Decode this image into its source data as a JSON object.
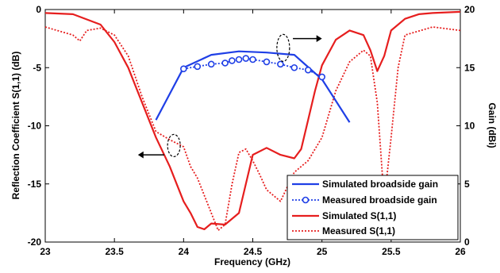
{
  "chart_data": {
    "type": "line",
    "xlabel": "Frequency (GHz)",
    "ylabel_left": "Reflection Coefficient S(1,1) (dB)",
    "ylabel_right": "Gain (dBi)",
    "xlim": [
      23,
      26
    ],
    "ylim_left": [
      -20,
      0
    ],
    "ylim_right": [
      0,
      20
    ],
    "x_ticks": [
      "23",
      "23.5",
      "24",
      "24.5",
      "25",
      "25.5",
      "26"
    ],
    "y_left_ticks": [
      "0",
      "-5",
      "-10",
      "-15",
      "-20"
    ],
    "y_right_ticks": [
      "20",
      "15",
      "10",
      "5",
      "0"
    ],
    "legend_position": "bottom-right",
    "colors": {
      "blue": "#1f3fe6",
      "red": "#e61e1e"
    },
    "series": [
      {
        "name": "Simulated broadside gain",
        "axis": "right",
        "style": "solid",
        "color": "#1f3fe6",
        "x": [
          23.8,
          24.0,
          24.2,
          24.4,
          24.6,
          24.8,
          25.0,
          25.2
        ],
        "y": [
          10.5,
          15.0,
          16.1,
          16.4,
          16.3,
          16.1,
          14.0,
          10.3
        ]
      },
      {
        "name": "Measured broadside gain",
        "axis": "right",
        "style": "dotted-marker",
        "color": "#1f3fe6",
        "x": [
          24.0,
          24.1,
          24.2,
          24.3,
          24.35,
          24.4,
          24.45,
          24.5,
          24.6,
          24.7,
          24.8,
          24.9,
          25.0
        ],
        "y": [
          14.9,
          15.1,
          15.3,
          15.4,
          15.6,
          15.7,
          15.8,
          15.7,
          15.5,
          15.3,
          15.0,
          14.8,
          14.2
        ]
      },
      {
        "name": "Simulated S(1,1)",
        "axis": "left",
        "style": "solid",
        "color": "#e61e1e",
        "x": [
          23.0,
          23.2,
          23.4,
          23.5,
          23.6,
          23.7,
          23.8,
          23.9,
          23.95,
          24.0,
          24.05,
          24.1,
          24.15,
          24.2,
          24.3,
          24.4,
          24.5,
          24.6,
          24.7,
          24.8,
          24.85,
          24.9,
          24.95,
          25.0,
          25.1,
          25.2,
          25.3,
          25.35,
          25.4,
          25.45,
          25.5,
          25.6,
          25.7,
          25.8,
          26.0
        ],
        "y": [
          -0.3,
          -0.4,
          -1.3,
          -2.8,
          -5.0,
          -8.0,
          -11.0,
          -13.5,
          -15.0,
          -16.5,
          -17.5,
          -18.7,
          -18.9,
          -18.4,
          -18.5,
          -17.5,
          -12.5,
          -11.9,
          -12.5,
          -12.8,
          -12.0,
          -9.5,
          -7.0,
          -4.8,
          -2.6,
          -1.8,
          -2.2,
          -3.5,
          -5.3,
          -4.0,
          -1.8,
          -0.8,
          -0.4,
          -0.3,
          -0.2
        ]
      },
      {
        "name": "Measured S(1,1)",
        "axis": "left",
        "style": "dotted",
        "color": "#e61e1e",
        "x": [
          23.0,
          23.2,
          23.25,
          23.3,
          23.4,
          23.5,
          23.6,
          23.7,
          23.8,
          23.9,
          24.0,
          24.05,
          24.1,
          24.15,
          24.2,
          24.25,
          24.3,
          24.35,
          24.4,
          24.45,
          24.5,
          24.55,
          24.6,
          24.7,
          24.8,
          24.9,
          25.0,
          25.1,
          25.2,
          25.3,
          25.35,
          25.4,
          25.45,
          25.5,
          25.55,
          25.6,
          25.8,
          26.0
        ],
        "y": [
          -1.5,
          -2.2,
          -2.7,
          -1.8,
          -1.6,
          -2.2,
          -4.0,
          -7.5,
          -10.5,
          -11.2,
          -11.8,
          -13.5,
          -14.5,
          -16.0,
          -17.5,
          -19.0,
          -18.5,
          -15.0,
          -12.3,
          -12.0,
          -13.0,
          -14.2,
          -15.5,
          -16.5,
          -14.0,
          -13.0,
          -11.0,
          -7.0,
          -4.5,
          -3.5,
          -4.0,
          -8.0,
          -16.5,
          -11.0,
          -5.0,
          -2.2,
          -1.5,
          -1.8
        ]
      }
    ]
  }
}
